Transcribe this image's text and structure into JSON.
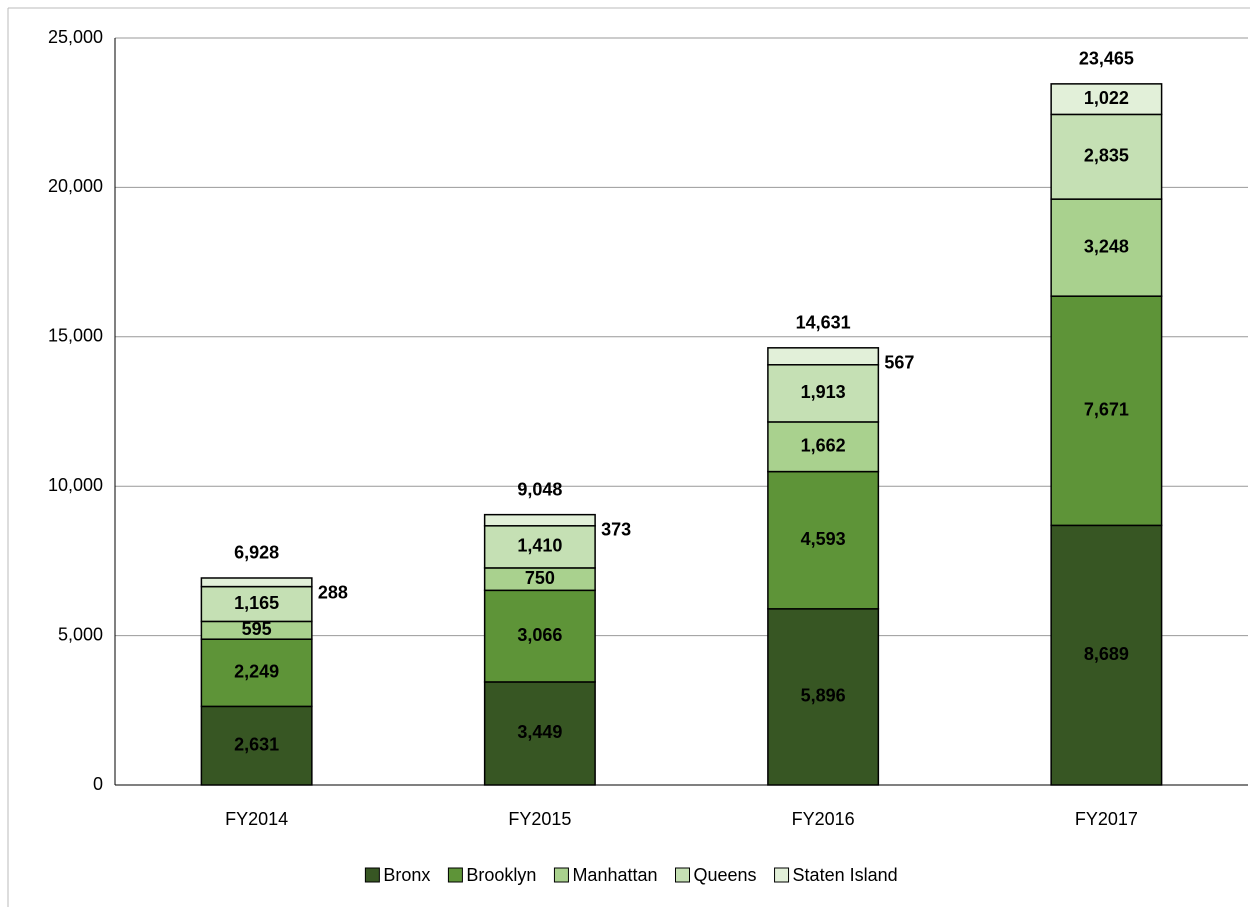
{
  "chart_data": {
    "type": "stacked_bar",
    "categories": [
      "FY2014",
      "FY2015",
      "FY2016",
      "FY2017"
    ],
    "series": [
      {
        "name": "Bronx",
        "color": "#375623",
        "values": [
          2631,
          3449,
          5896,
          8689
        ],
        "value_labels": [
          "2,631",
          "3,449",
          "5,896",
          "8,689"
        ]
      },
      {
        "name": "Brooklyn",
        "color": "#5e9438",
        "values": [
          2249,
          3066,
          4593,
          7671
        ],
        "value_labels": [
          "2,249",
          "3,066",
          "4,593",
          "7,671"
        ]
      },
      {
        "name": "Manhattan",
        "color": "#a9d18e",
        "values": [
          595,
          750,
          1662,
          3248
        ],
        "value_labels": [
          "595",
          "750",
          "1,662",
          "3,248"
        ]
      },
      {
        "name": "Queens",
        "color": "#c5e0b4",
        "values": [
          1165,
          1410,
          1913,
          2835
        ],
        "value_labels": [
          "1,165",
          "1,410",
          "1,913",
          "2,835"
        ]
      },
      {
        "name": "Staten Island",
        "color": "#e2f0d9",
        "values": [
          288,
          373,
          567,
          1022
        ],
        "value_labels": [
          "288",
          "373",
          "567",
          "1,022"
        ]
      }
    ],
    "totals": {
      "values": [
        6928,
        9048,
        14631,
        23465
      ],
      "value_labels": [
        "6,928",
        "9,048",
        "14,631",
        "23,465"
      ]
    },
    "ylim": [
      0,
      25000
    ],
    "yticks": [
      0,
      {
        "value": 5000,
        "label": "5,000"
      },
      {
        "value": 10000,
        "label": "10,000"
      },
      {
        "value": 15000,
        "label": "15,000"
      },
      {
        "value": 20000,
        "label": "20,000"
      },
      {
        "value": 25000,
        "label": "25,000"
      }
    ],
    "grid": true,
    "legend": "bottom"
  }
}
